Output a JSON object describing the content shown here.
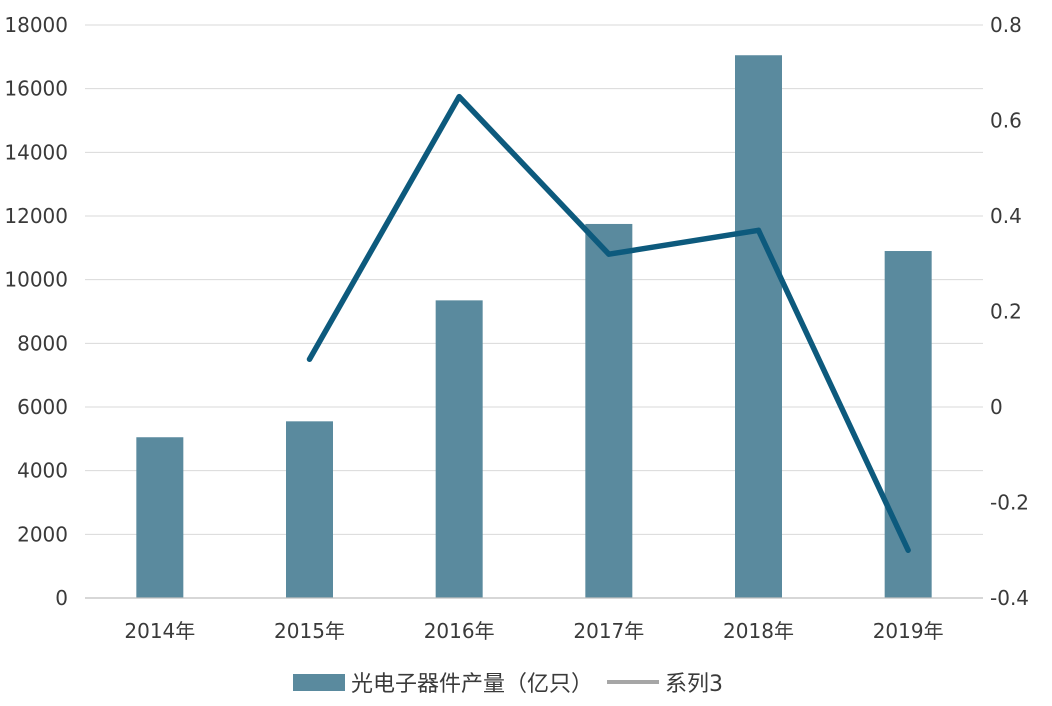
{
  "chart_data": {
    "type": "bar",
    "categories": [
      "2014年",
      "2015年",
      "2016年",
      "2017年",
      "2018年",
      "2019年"
    ],
    "series": [
      {
        "name": "光电子器件产量（亿只）",
        "type": "bar",
        "axis": "left",
        "color": "#5a8a9e",
        "values": [
          5050,
          5550,
          9350,
          11750,
          17050,
          10900
        ]
      },
      {
        "name": "系列3",
        "type": "line",
        "axis": "right",
        "color": "#0d5a7d",
        "legend_color": "#a6a6a6",
        "values": [
          null,
          0.1,
          0.65,
          0.32,
          0.37,
          -0.3
        ]
      }
    ],
    "y_left": {
      "min": 0,
      "max": 18000,
      "ticks": [
        "0",
        "2000",
        "4000",
        "6000",
        "8000",
        "10000",
        "12000",
        "14000",
        "16000",
        "18000"
      ]
    },
    "y_right": {
      "min": -0.4,
      "max": 0.8,
      "ticks": [
        "-0.4",
        "-0.2",
        "0",
        "0.2",
        "0.4",
        "0.6",
        "0.8"
      ]
    },
    "grid": true,
    "legend_position": "bottom"
  }
}
